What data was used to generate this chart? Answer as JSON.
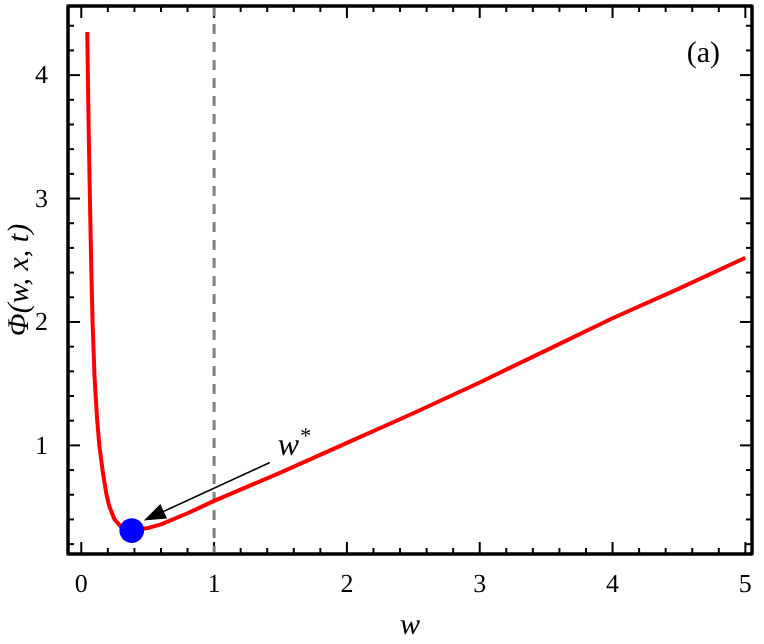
{
  "chart_data": {
    "type": "line",
    "xlabel": "w",
    "ylabel": "Φ(w, x, t)",
    "xlim": [
      -0.1,
      5.05
    ],
    "ylim": [
      0.12,
      4.56
    ],
    "xticks": [
      0,
      {
        "value": 0.2,
        "label": null
      },
      {
        "value": 0.4,
        "label": null
      },
      {
        "value": 0.6,
        "label": null
      },
      {
        "value": 0.8,
        "label": null
      },
      1,
      {
        "value": 1.2,
        "label": null
      },
      {
        "value": 1.4,
        "label": null
      },
      {
        "value": 1.6,
        "label": null
      },
      {
        "value": 1.8,
        "label": null
      },
      2,
      {
        "value": 2.2,
        "label": null
      },
      {
        "value": 2.4,
        "label": null
      },
      {
        "value": 2.6,
        "label": null
      },
      {
        "value": 2.8,
        "label": null
      },
      3,
      {
        "value": 3.2,
        "label": null
      },
      {
        "value": 3.4,
        "label": null
      },
      {
        "value": 3.6,
        "label": null
      },
      {
        "value": 3.8,
        "label": null
      },
      4,
      {
        "value": 4.2,
        "label": null
      },
      {
        "value": 4.4,
        "label": null
      },
      {
        "value": 4.6,
        "label": null
      },
      {
        "value": 4.8,
        "label": null
      },
      5
    ],
    "yticks": [
      {
        "value": 0.2,
        "label": null
      },
      {
        "value": 0.4,
        "label": null
      },
      {
        "value": 0.6,
        "label": null
      },
      {
        "value": 0.8,
        "label": null
      },
      1,
      {
        "value": 1.2,
        "label": null
      },
      {
        "value": 1.4,
        "label": null
      },
      {
        "value": 1.6,
        "label": null
      },
      {
        "value": 1.8,
        "label": null
      },
      2,
      {
        "value": 2.2,
        "label": null
      },
      {
        "value": 2.4,
        "label": null
      },
      {
        "value": 2.6,
        "label": null
      },
      {
        "value": 2.8,
        "label": null
      },
      3,
      {
        "value": 3.2,
        "label": null
      },
      {
        "value": 3.4,
        "label": null
      },
      {
        "value": 3.6,
        "label": null
      },
      {
        "value": 3.8,
        "label": null
      },
      4,
      {
        "value": 4.2,
        "label": null
      },
      {
        "value": 4.4,
        "label": null
      }
    ],
    "grid": false,
    "series": [
      {
        "color": "#ff0000",
        "x": [
          0.045,
          0.055,
          0.065,
          0.075,
          0.085,
          0.1,
          0.12,
          0.136,
          0.16,
          0.19,
          0.21,
          0.25,
          0.3,
          0.38,
          0.5,
          0.6,
          0.8,
          1,
          1.5,
          2,
          2.5,
          3,
          3.5,
          4,
          4.5,
          5
        ],
        "values": [
          4.35,
          3.6,
          3.0,
          2.45,
          2.0,
          1.55,
          1.2,
          1.0,
          0.8,
          0.6,
          0.51,
          0.4,
          0.34,
          0.31,
          0.33,
          0.36,
          0.45,
          0.55,
          0.78,
          1.02,
          1.26,
          1.51,
          1.77,
          2.03,
          2.27,
          2.52
        ]
      },
      {
        "type": "scatter",
        "color": "#0000ff",
        "marker": "circle",
        "x": [
          0.38
        ],
        "values": [
          0.31
        ]
      }
    ],
    "ref_lines": [
      {
        "axis": "x",
        "value": 1,
        "color": "#808080",
        "line_style": "dashed"
      }
    ],
    "annotations": [
      "w$^{*}$",
      "(a)"
    ]
  }
}
